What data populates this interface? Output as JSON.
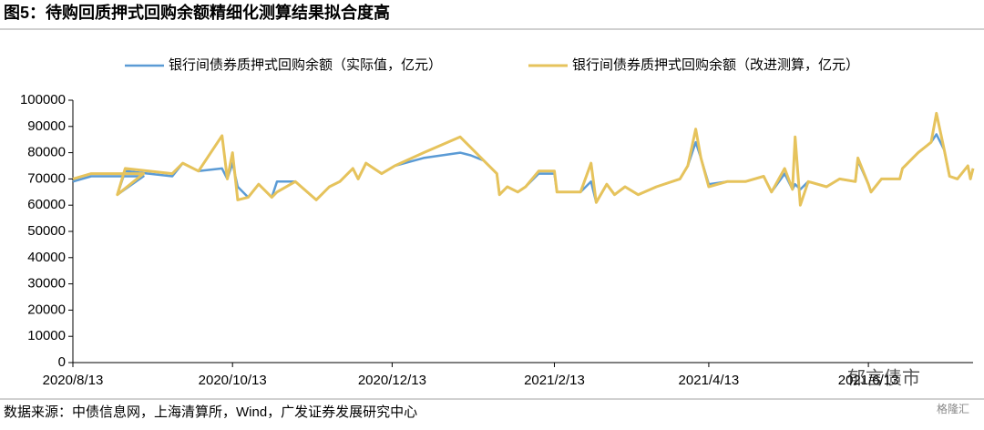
{
  "chart_data": {
    "type": "line",
    "title": "图5：待购回质押式回购余额精细化测算结果拟合度高",
    "source": "数据来源：中债信息网，上海清算所，Wind，广发证券发展研究中心",
    "watermarks": [
      "郁言债市",
      "格隆汇"
    ],
    "x": [
      "2020/8/13",
      "2020/8/20",
      "2020/9/1",
      "2020/9/9",
      "2020/8/30",
      "2020/9/2",
      "2020/9/20",
      "2020/9/24",
      "2020/9/30",
      "2020/10/9",
      "2020/10/11",
      "2020/10/13",
      "2020/10/15",
      "2020/10/19",
      "2020/10/23",
      "2020/10/28",
      "2020/10/30",
      "2020/11/6",
      "2020/11/14",
      "2020/11/19",
      "2020/11/23",
      "2020/11/28",
      "2020/11/30",
      "2020/12/3",
      "2020/12/9",
      "2020/12/14",
      "2020/12/25",
      "2021/1/8",
      "2021/1/12",
      "2021/1/17",
      "2021/1/22",
      "2021/1/23",
      "2021/1/26",
      "2021/1/30",
      "2021/2/2",
      "2021/2/7",
      "2021/2/13",
      "2021/2/14",
      "2021/2/23",
      "2021/2/27",
      "2021/3/1",
      "2021/3/5",
      "2021/3/8",
      "2021/3/12",
      "2021/3/17",
      "2021/3/24",
      "2021/4/2",
      "2021/4/5",
      "2021/4/8",
      "2021/4/10",
      "2021/4/13",
      "2021/4/20",
      "2021/4/27",
      "2021/5/4",
      "2021/5/7",
      "2021/5/12",
      "2021/5/15",
      "2021/5/16",
      "2021/5/18",
      "2021/5/21",
      "2021/5/28",
      "2021/6/2",
      "2021/6/8",
      "2021/6/9",
      "2021/6/13",
      "2021/6/14",
      "2021/6/18",
      "2021/6/25",
      "2021/6/26",
      "2021/7/2",
      "2021/7/7",
      "2021/7/9",
      "2021/7/12",
      "2021/7/14",
      "2021/7/17",
      "2021/7/21",
      "2021/7/22",
      "2021/7/23"
    ],
    "series": [
      {
        "name": "银行间债券质押式回购余额（实际值，亿元）",
        "color": "#5b9bd5",
        "values": [
          69000,
          71000,
          71000,
          71000,
          64000,
          73000,
          71000,
          76000,
          73000,
          74000,
          70000,
          76000,
          67000,
          63000,
          68000,
          63000,
          69000,
          69000,
          62000,
          67000,
          69000,
          74000,
          70000,
          76000,
          72000,
          75000,
          78000,
          80000,
          79000,
          77000,
          72000,
          64000,
          67000,
          65000,
          67000,
          72000,
          72000,
          65000,
          65000,
          69000,
          61000,
          68000,
          64000,
          67000,
          64000,
          67000,
          70000,
          75000,
          84000,
          78000,
          68000,
          69000,
          69000,
          71000,
          65000,
          72000,
          66000,
          68000,
          66000,
          69000,
          67000,
          70000,
          69000,
          77000,
          68000,
          65000,
          70000,
          70000,
          74000,
          80000,
          84000,
          87000,
          81000,
          71000,
          70000,
          75000,
          70000,
          74000
        ]
      },
      {
        "name": "银行间债券质押式回购余额（改进测算，亿元）",
        "color": "#e6c35c",
        "values": [
          70000,
          72000,
          72000,
          72000,
          64000,
          74000,
          72000,
          76000,
          73000,
          86500,
          70000,
          80000,
          62000,
          63000,
          68000,
          63000,
          65000,
          69000,
          62000,
          67000,
          69000,
          74000,
          70000,
          76000,
          72000,
          75000,
          80000,
          86000,
          82000,
          77000,
          72000,
          64000,
          67000,
          65000,
          67000,
          73000,
          73000,
          65000,
          65000,
          76000,
          61000,
          68000,
          64000,
          67000,
          64000,
          67000,
          70000,
          75000,
          89000,
          78000,
          67000,
          69000,
          69000,
          71000,
          65000,
          74000,
          66000,
          86000,
          60000,
          69000,
          67000,
          70000,
          69000,
          78000,
          68000,
          65000,
          70000,
          70000,
          74000,
          80000,
          84000,
          95000,
          81000,
          71000,
          70000,
          75000,
          70000,
          74000
        ]
      }
    ],
    "xlim": [
      "2020/8/13",
      "2021/7/23"
    ],
    "xticks": [
      "2020/8/13",
      "2020/10/13",
      "2020/12/13",
      "2021/2/13",
      "2021/4/13",
      "2021/6/13"
    ],
    "ylim": [
      0,
      100000
    ],
    "yticks": [
      0,
      10000,
      20000,
      30000,
      40000,
      50000,
      60000,
      70000,
      80000,
      90000,
      100000
    ],
    "grid": false
  }
}
